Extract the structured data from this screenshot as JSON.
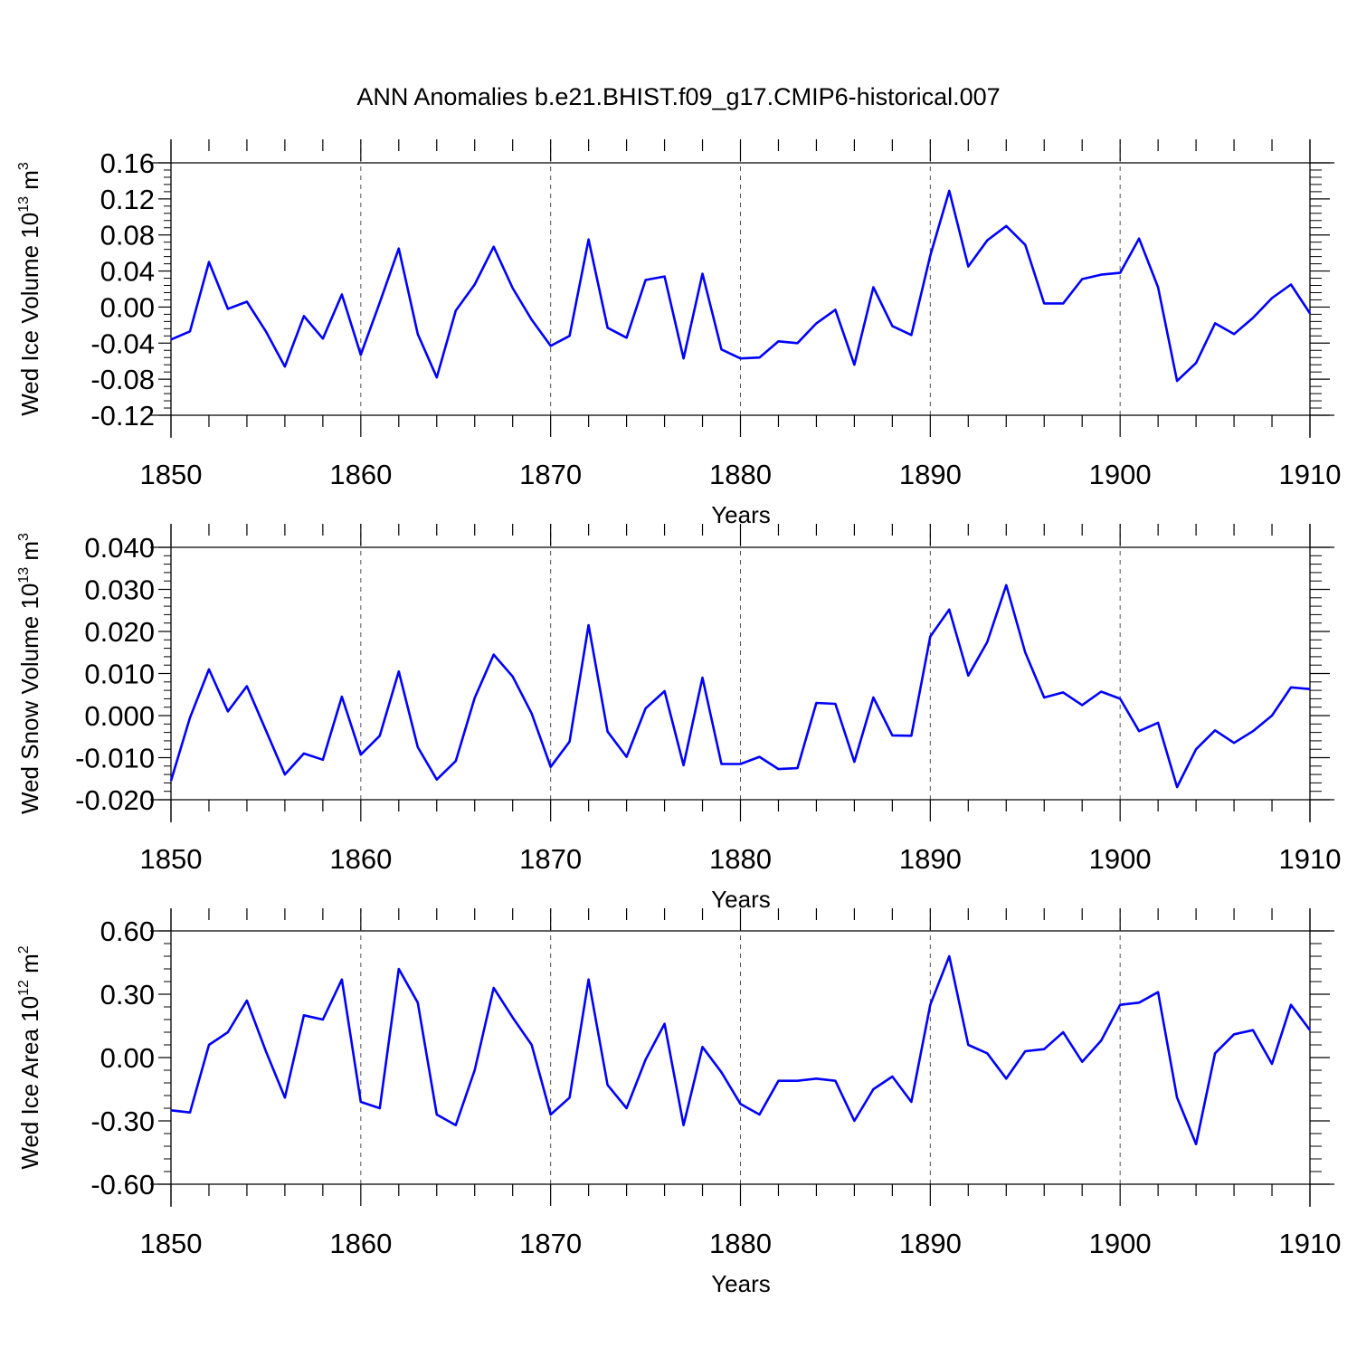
{
  "title": "ANN Anomalies b.e21.BHIST.f09_g17.CMIP6-historical.007",
  "colors": {
    "series": "#0000ff",
    "axis": "#000000",
    "grid": "#555555"
  },
  "chart_data": [
    {
      "type": "line",
      "title": "ANN Anomalies b.e21.BHIST.f09_g17.CMIP6-historical.007",
      "xlabel": "Years",
      "ylabel": {
        "text": "Wed Ice Volume 10",
        "sup": "13",
        "unit": " m",
        "unit_sup": "3"
      },
      "xlim": [
        1850,
        1910
      ],
      "ylim": [
        -0.12,
        0.16
      ],
      "x_ticks": [
        "1850",
        "1860",
        "1870",
        "1880",
        "1890",
        "1900",
        "1910"
      ],
      "y_ticks": [
        "-0.12",
        "-0.08",
        "-0.04",
        "0.00",
        "0.04",
        "0.08",
        "0.12",
        "0.16"
      ],
      "grid": "vertical dashed at major x ticks",
      "x_start": 1850,
      "x_step": 1,
      "values": [
        -0.036,
        -0.027,
        0.05,
        -0.002,
        0.006,
        -0.027,
        -0.066,
        -0.01,
        -0.035,
        0.014,
        -0.053,
        0.005,
        0.065,
        -0.03,
        -0.078,
        -0.004,
        0.025,
        0.067,
        0.021,
        -0.014,
        -0.043,
        -0.032,
        0.075,
        -0.023,
        -0.034,
        0.03,
        0.034,
        -0.057,
        0.037,
        -0.047,
        -0.057,
        -0.056,
        -0.038,
        -0.04,
        -0.018,
        -0.003,
        -0.064,
        0.022,
        -0.021,
        -0.031,
        0.057,
        0.129,
        0.045,
        0.074,
        0.09,
        0.069,
        0.004,
        0.004,
        0.031,
        0.036,
        0.038,
        0.076,
        0.022,
        -0.082,
        -0.062,
        -0.018,
        -0.03,
        -0.012,
        0.01,
        0.025,
        -0.007
      ]
    },
    {
      "type": "line",
      "xlabel": "Years",
      "ylabel": {
        "text": "Wed Snow Volume 10",
        "sup": "13",
        "unit": " m",
        "unit_sup": "3"
      },
      "xlim": [
        1850,
        1910
      ],
      "ylim": [
        -0.02,
        0.04
      ],
      "x_ticks": [
        "1850",
        "1860",
        "1870",
        "1880",
        "1890",
        "1900",
        "1910"
      ],
      "y_ticks": [
        "-0.020",
        "-0.010",
        "0.000",
        "0.010",
        "0.020",
        "0.030",
        "0.040"
      ],
      "grid": "vertical dashed at major x ticks",
      "x_start": 1850,
      "x_step": 1,
      "values": [
        -0.0155,
        -0.0005,
        0.011,
        0.001,
        0.007,
        -0.0035,
        -0.014,
        -0.009,
        -0.0105,
        0.0045,
        -0.0093,
        -0.0048,
        0.0105,
        -0.0075,
        -0.0152,
        -0.0108,
        0.0042,
        0.0145,
        0.0093,
        0.0005,
        -0.0122,
        -0.0062,
        0.0215,
        -0.0038,
        -0.0098,
        0.0017,
        0.0058,
        -0.0118,
        0.009,
        -0.0115,
        -0.0115,
        -0.0098,
        -0.0127,
        -0.0125,
        0.003,
        0.0028,
        -0.011,
        0.0043,
        -0.0047,
        -0.0048,
        0.0188,
        0.0252,
        0.0095,
        0.0175,
        0.031,
        0.015,
        0.0043,
        0.0055,
        0.0025,
        0.0057,
        0.004,
        -0.0037,
        -0.0017,
        -0.017,
        -0.008,
        -0.0035,
        -0.0065,
        -0.0037,
        0.0,
        0.0067,
        0.0063
      ]
    },
    {
      "type": "line",
      "xlabel": "Years",
      "ylabel": {
        "text": "Wed Ice Area 10",
        "sup": "12",
        "unit": " m",
        "unit_sup": "2"
      },
      "xlim": [
        1850,
        1910
      ],
      "ylim": [
        -0.6,
        0.6
      ],
      "x_ticks": [
        "1850",
        "1860",
        "1870",
        "1880",
        "1890",
        "1900",
        "1910"
      ],
      "y_ticks": [
        "-0.60",
        "-0.30",
        "0.00",
        "0.30",
        "0.60"
      ],
      "grid": "vertical dashed at major x ticks",
      "x_start": 1850,
      "x_step": 1,
      "values": [
        -0.25,
        -0.26,
        0.06,
        0.12,
        0.27,
        0.03,
        -0.19,
        0.2,
        0.18,
        0.37,
        -0.21,
        -0.24,
        0.42,
        0.26,
        -0.27,
        -0.32,
        -0.06,
        0.33,
        0.19,
        0.06,
        -0.27,
        -0.19,
        0.37,
        -0.13,
        -0.24,
        -0.01,
        0.16,
        -0.32,
        0.05,
        -0.07,
        -0.22,
        -0.27,
        -0.11,
        -0.11,
        -0.1,
        -0.11,
        -0.3,
        -0.15,
        -0.09,
        -0.21,
        0.25,
        0.48,
        0.06,
        0.02,
        -0.1,
        0.03,
        0.04,
        0.12,
        -0.02,
        0.08,
        0.25,
        0.26,
        0.31,
        -0.19,
        -0.41,
        0.02,
        0.11,
        0.13,
        -0.03,
        0.25,
        0.13
      ]
    }
  ]
}
